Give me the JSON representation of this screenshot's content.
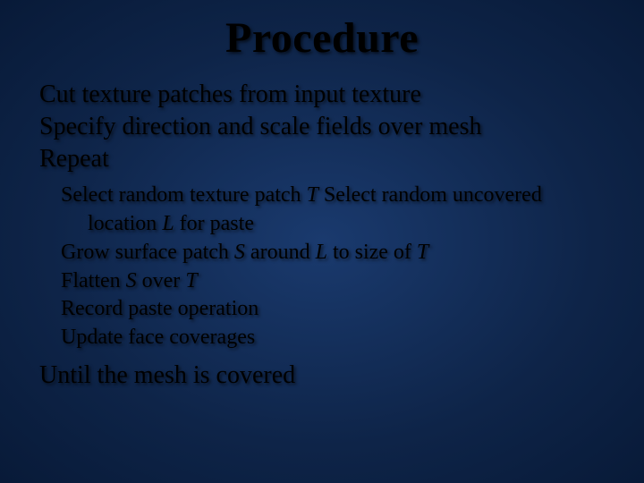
{
  "slide": {
    "title": "Procedure",
    "lines": {
      "l1": "Cut texture patches from input texture",
      "l2": "Specify direction and scale fields over mesh",
      "l3": "Repeat",
      "l4": "Until the mesh is covered"
    },
    "sub": {
      "s1a": "Select random texture patch ",
      "s1b": "T",
      "s1c": " Select random uncovered location ",
      "s1d": "L",
      "s1e": " for paste",
      "s2a": "Grow surface patch ",
      "s2b": "S",
      "s2c": " around ",
      "s2d": "L",
      "s2e": " to size of ",
      "s2f": "T",
      "s3a": "Flatten ",
      "s3b": "S",
      "s3c": " over ",
      "s3d": "T",
      "s4": "Record paste operation",
      "s5": "Update face coverages"
    }
  },
  "style": {
    "background_center": "#1a3a6e",
    "background_mid": "#0e2448",
    "background_edge": "#081a38",
    "text_color": "#000000",
    "title_fontsize": 48,
    "main_fontsize": 28,
    "sub_fontsize": 24,
    "font_family": "Times New Roman"
  }
}
